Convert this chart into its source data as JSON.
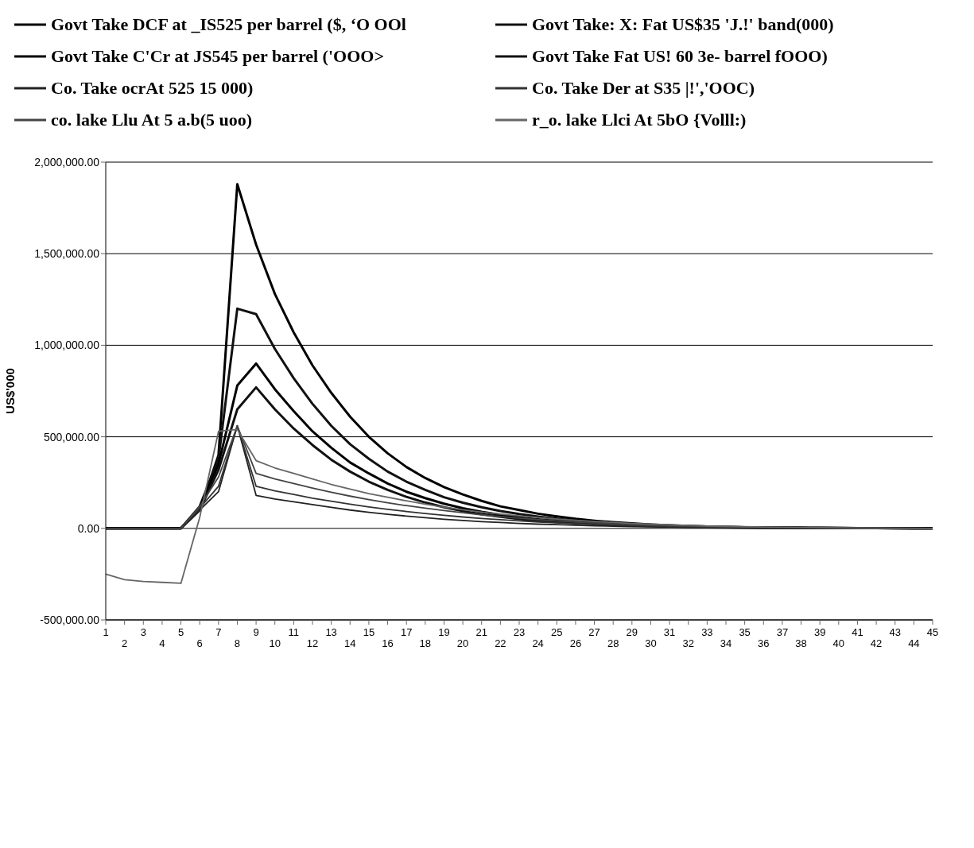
{
  "chart_data": {
    "type": "line",
    "ylabel": "US$'000",
    "legend": "top",
    "grid": "y",
    "marker": "none",
    "line_style": "solid",
    "categories": [
      "1",
      "2",
      "3",
      "4",
      "5",
      "6",
      "7",
      "8",
      "9",
      "10",
      "11",
      "12",
      "13",
      "14",
      "15",
      "16",
      "17",
      "18",
      "19",
      "20",
      "21",
      "22",
      "23",
      "24",
      "25",
      "26",
      "27",
      "28",
      "29",
      "30",
      "31",
      "32",
      "33",
      "34",
      "35",
      "36",
      "37",
      "38",
      "39",
      "40",
      "41",
      "42",
      "43",
      "44",
      "45"
    ],
    "ylim": [
      -500000,
      2000000
    ],
    "yticks": [
      {
        "value": -500000,
        "label": "-500,000.00"
      },
      {
        "value": 0,
        "label": "0.00"
      },
      {
        "value": 500000,
        "label": "500,000.00"
      },
      {
        "value": 1000000,
        "label": "1,000,000.00"
      },
      {
        "value": 1500000,
        "label": "1,500,000.00"
      },
      {
        "value": 2000000,
        "label": "2,000,000.00"
      }
    ],
    "series": [
      {
        "name": "Govt Take DCF at _IS525 per barrel ($, ‘O OOl",
        "color": "#000000",
        "values": [
          0,
          0,
          0,
          0,
          0,
          100000,
          400000,
          1880000,
          1550000,
          1280000,
          1070000,
          890000,
          740000,
          610000,
          500000,
          410000,
          335000,
          275000,
          225000,
          185000,
          150000,
          120000,
          100000,
          80000,
          65000,
          52000,
          42000,
          34000,
          27000,
          21000,
          17000,
          13000,
          10000,
          8000,
          6000,
          5000,
          4000,
          3000,
          2000,
          2000,
          1000,
          1000,
          1000,
          0,
          0
        ]
      },
      {
        "name": "Govt Take: X: Fat US$35 'J.!' band(000)",
        "color": "#111111",
        "values": [
          0,
          0,
          0,
          0,
          0,
          120000,
          380000,
          1200000,
          1170000,
          980000,
          820000,
          680000,
          560000,
          460000,
          380000,
          310000,
          255000,
          210000,
          170000,
          140000,
          115000,
          95000,
          78000,
          64000,
          52000,
          42000,
          34000,
          28000,
          23000,
          19000,
          15000,
          12000,
          10000,
          8000,
          6000,
          5000,
          4000,
          3000,
          2000,
          2000,
          1000,
          1000,
          1000,
          0,
          0
        ]
      },
      {
        "name": "Govt Take C'Cr at JS545 per barrel ('OOO>",
        "color": "#000000",
        "values": [
          0,
          0,
          0,
          0,
          0,
          110000,
          350000,
          780000,
          900000,
          760000,
          640000,
          530000,
          440000,
          360000,
          300000,
          245000,
          200000,
          165000,
          135000,
          110000,
          90000,
          74000,
          60000,
          49000,
          40000,
          33000,
          27000,
          22000,
          18000,
          14000,
          11000,
          9000,
          7000,
          6000,
          5000,
          4000,
          3000,
          2000,
          2000,
          1000,
          1000,
          1000,
          0,
          0,
          0
        ]
      },
      {
        "name": "Govt Take Fat US! 60 3e- barrel fOOO)",
        "color": "#111111",
        "values": [
          0,
          0,
          0,
          0,
          0,
          100000,
          320000,
          650000,
          770000,
          650000,
          545000,
          455000,
          375000,
          310000,
          255000,
          210000,
          172000,
          141000,
          115000,
          94000,
          77000,
          63000,
          51000,
          42000,
          34000,
          28000,
          23000,
          19000,
          15000,
          12000,
          10000,
          8000,
          6000,
          5000,
          4000,
          3000,
          3000,
          2000,
          2000,
          1000,
          1000,
          1000,
          0,
          0,
          0
        ]
      },
      {
        "name": "Co. Take ocrAt 525 15 000)",
        "color": "#222222",
        "values": [
          0,
          0,
          0,
          0,
          0,
          100000,
          200000,
          560000,
          180000,
          160000,
          145000,
          130000,
          115000,
          100000,
          88000,
          77000,
          67000,
          58000,
          50000,
          43000,
          37000,
          32000,
          27000,
          23000,
          20000,
          17000,
          14000,
          12000,
          10000,
          8000,
          7000,
          6000,
          5000,
          4000,
          3000,
          3000,
          2000,
          2000,
          1000,
          1000,
          1000,
          0,
          0,
          0,
          0
        ]
      },
      {
        "name": "Co. Take Der at S35 |!','OOC)",
        "color": "#333333",
        "values": [
          0,
          0,
          0,
          0,
          0,
          110000,
          230000,
          560000,
          230000,
          205000,
          185000,
          165000,
          148000,
          132000,
          117000,
          104000,
          92000,
          81000,
          71000,
          62000,
          54000,
          47000,
          41000,
          35000,
          30000,
          26000,
          22000,
          19000,
          16000,
          13000,
          11000,
          9000,
          8000,
          6000,
          5000,
          4000,
          3000,
          3000,
          2000,
          2000,
          1000,
          1000,
          1000,
          0,
          0
        ]
      },
      {
        "name": "co. lake Llu At 5 a.b(5 uoo)",
        "color": "#444444",
        "values": [
          0,
          0,
          0,
          0,
          0,
          120000,
          280000,
          560000,
          300000,
          270000,
          245000,
          220000,
          197000,
          176000,
          157000,
          140000,
          124000,
          110000,
          97000,
          85000,
          74000,
          64000,
          56000,
          48000,
          41000,
          35000,
          30000,
          25000,
          21000,
          18000,
          15000,
          12000,
          10000,
          8000,
          7000,
          5000,
          4000,
          3000,
          3000,
          2000,
          2000,
          1000,
          1000,
          0,
          0
        ]
      },
      {
        "name": "r_o. lake Llci At 5bO {Volll:)",
        "color": "#666666",
        "values": [
          -250000,
          -280000,
          -290000,
          -295000,
          -300000,
          60000,
          530000,
          540000,
          370000,
          330000,
          300000,
          270000,
          240000,
          215000,
          190000,
          170000,
          150000,
          132000,
          116000,
          102000,
          89000,
          78000,
          68000,
          59000,
          51000,
          44000,
          38000,
          32000,
          27000,
          23000,
          19000,
          16000,
          13000,
          11000,
          9000,
          7000,
          6000,
          5000,
          4000,
          3000,
          2000,
          2000,
          1000,
          1000,
          0
        ]
      }
    ]
  }
}
